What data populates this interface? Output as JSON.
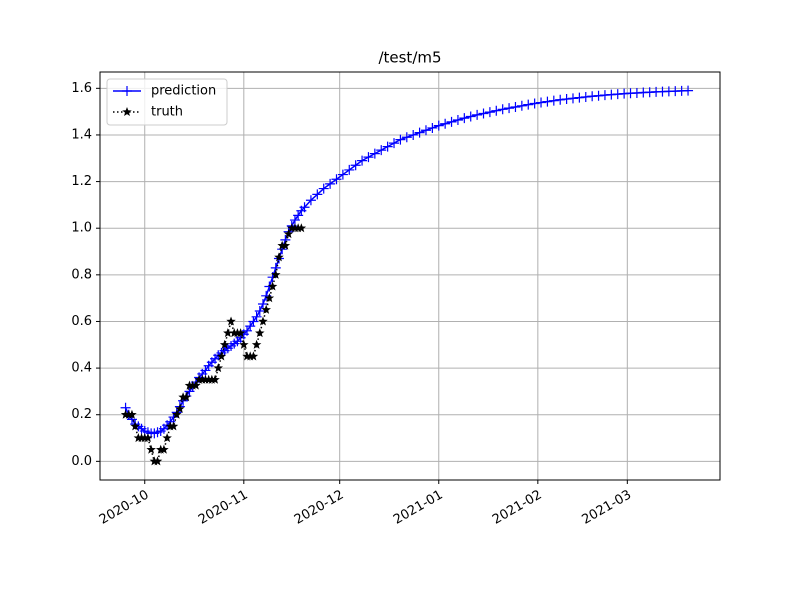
{
  "chart_data": {
    "type": "line",
    "title": "/test/m5",
    "xlim": [
      -14,
      180
    ],
    "xticks": [
      {
        "value": 0,
        "label": "2020-10"
      },
      {
        "value": 31,
        "label": "2020-11"
      },
      {
        "value": 61,
        "label": "2020-12"
      },
      {
        "value": 92,
        "label": "2021-01"
      },
      {
        "value": 123,
        "label": "2021-02"
      },
      {
        "value": 151,
        "label": "2021-03"
      }
    ],
    "ylim": [
      -0.08,
      1.67
    ],
    "yticks": [
      {
        "value": 0,
        "label": "0.0"
      },
      0.2,
      0.4,
      0.6,
      0.8,
      {
        "value": 1,
        "label": "1.0"
      },
      1.2,
      1.4,
      1.6
    ],
    "grid": true,
    "legend": "upper-left",
    "series": [
      {
        "name": "prediction",
        "color": "#0000ff",
        "linestyle": "solid",
        "marker": "plus",
        "x": [
          -6,
          -5,
          -4,
          -3,
          -2,
          -1,
          0,
          1,
          2,
          3,
          4,
          5,
          6,
          7,
          8,
          9,
          10,
          11,
          12,
          13,
          14,
          15,
          16,
          17,
          18,
          19,
          20,
          21,
          22,
          23,
          24,
          25,
          26,
          27,
          28,
          29,
          30,
          31,
          32,
          33,
          34,
          35,
          36,
          37,
          38,
          39,
          40,
          41,
          42,
          43,
          44,
          45,
          46,
          47,
          48,
          49,
          50,
          52,
          54,
          56,
          58,
          60,
          62,
          64,
          66,
          68,
          70,
          72,
          74,
          76,
          78,
          80,
          82,
          84,
          86,
          88,
          90,
          92,
          94,
          96,
          98,
          100,
          102,
          104,
          106,
          108,
          110,
          112,
          114,
          116,
          118,
          120,
          122,
          124,
          126,
          128,
          130,
          132,
          134,
          136,
          138,
          140,
          142,
          144,
          146,
          148,
          150,
          152,
          154,
          156,
          158,
          160,
          162,
          164,
          166,
          168,
          170
        ],
        "values": [
          0.23,
          0.2,
          0.18,
          0.16,
          0.15,
          0.14,
          0.13,
          0.125,
          0.12,
          0.12,
          0.125,
          0.13,
          0.14,
          0.155,
          0.17,
          0.19,
          0.21,
          0.235,
          0.26,
          0.28,
          0.3,
          0.32,
          0.34,
          0.36,
          0.375,
          0.39,
          0.41,
          0.425,
          0.44,
          0.455,
          0.465,
          0.475,
          0.485,
          0.495,
          0.505,
          0.515,
          0.53,
          0.545,
          0.56,
          0.58,
          0.6,
          0.62,
          0.645,
          0.675,
          0.71,
          0.75,
          0.79,
          0.83,
          0.87,
          0.91,
          0.95,
          0.985,
          1.01,
          1.035,
          1.055,
          1.075,
          1.09,
          1.12,
          1.145,
          1.17,
          1.19,
          1.21,
          1.23,
          1.25,
          1.27,
          1.29,
          1.305,
          1.32,
          1.335,
          1.35,
          1.365,
          1.38,
          1.39,
          1.4,
          1.41,
          1.42,
          1.43,
          1.44,
          1.448,
          1.456,
          1.464,
          1.472,
          1.479,
          1.486,
          1.492,
          1.498,
          1.504,
          1.51,
          1.515,
          1.52,
          1.525,
          1.53,
          1.535,
          1.539,
          1.543,
          1.547,
          1.551,
          1.554,
          1.557,
          1.56,
          1.563,
          1.566,
          1.568,
          1.571,
          1.573,
          1.575,
          1.577,
          1.579,
          1.58,
          1.582,
          1.583,
          1.585,
          1.586,
          1.587,
          1.588,
          1.589,
          1.59
        ]
      },
      {
        "name": "truth",
        "color": "#000000",
        "linestyle": "dotted",
        "marker": "star",
        "x": [
          -6,
          -5,
          -4,
          -3,
          -2,
          -1,
          0,
          1,
          2,
          3,
          4,
          5,
          6,
          7,
          8,
          9,
          10,
          11,
          12,
          13,
          14,
          15,
          16,
          17,
          18,
          19,
          20,
          21,
          22,
          23,
          24,
          25,
          26,
          27,
          28,
          29,
          30,
          31,
          32,
          33,
          34,
          35,
          36,
          37,
          38,
          39,
          40,
          41,
          42,
          43,
          44,
          45,
          46,
          47,
          48,
          49
        ],
        "values": [
          0.2,
          0.2,
          0.2,
          0.15,
          0.1,
          0.1,
          0.1,
          0.1,
          0.05,
          0,
          0,
          0.05,
          0.05,
          0.1,
          0.15,
          0.15,
          0.2,
          0.225,
          0.275,
          0.275,
          0.325,
          0.325,
          0.325,
          0.35,
          0.35,
          0.35,
          0.35,
          0.35,
          0.35,
          0.4,
          0.45,
          0.5,
          0.55,
          0.6,
          0.55,
          0.55,
          0.55,
          0.5,
          0.45,
          0.45,
          0.45,
          0.5,
          0.55,
          0.6,
          0.65,
          0.7,
          0.75,
          0.8,
          0.875,
          0.925,
          0.925,
          0.975,
          1,
          1,
          1,
          1
        ]
      }
    ]
  }
}
